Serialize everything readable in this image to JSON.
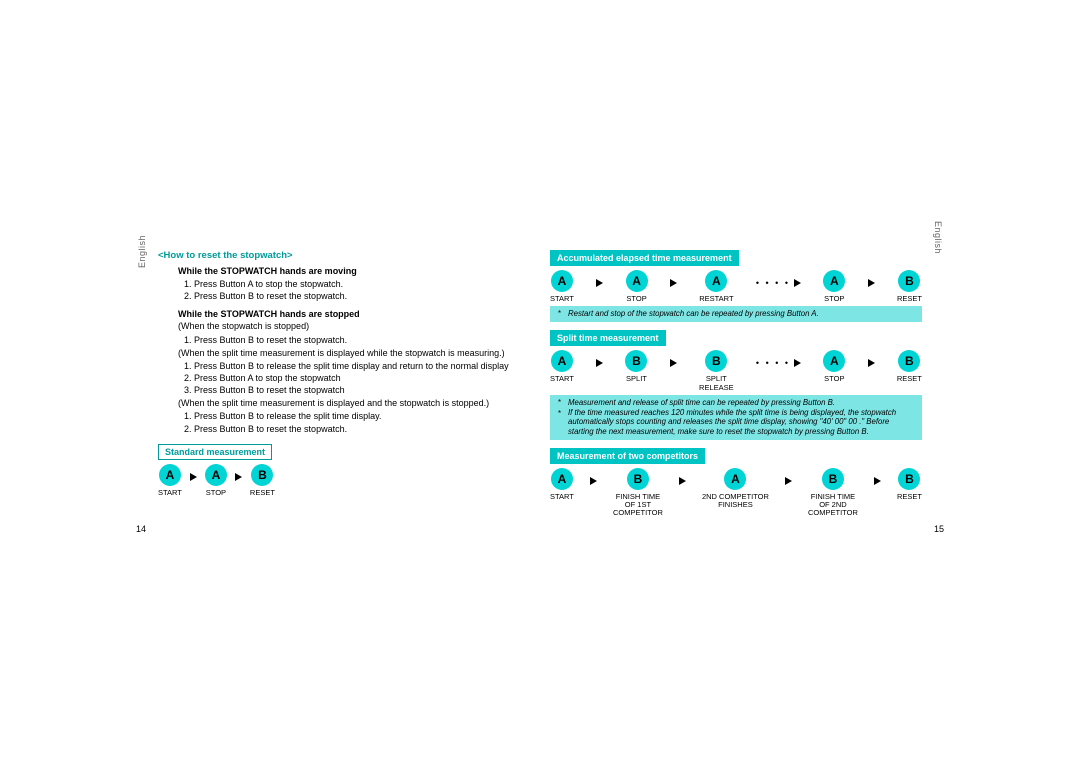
{
  "colors": {
    "teal": "#009b9b",
    "cyan_fill": "#00d4d4",
    "cyan_box": "#7ee5e5",
    "inv_box": "#00c4c4"
  },
  "side_label": "English",
  "page_left_num": "14",
  "page_right_num": "15",
  "left": {
    "reset_title": "<How to reset the stopwatch>",
    "moving_h": "While the STOPWATCH hands are moving",
    "moving_1": "Press Button A to stop the stopwatch.",
    "moving_2": "Press Button B to reset the stopwatch.",
    "stopped_h": "While the STOPWATCH hands are stopped",
    "stopped_p1": "(When the stopwatch is stopped)",
    "stopped_1": "Press Button B to reset the stopwatch.",
    "stopped_p2": "(When the split time measurement is displayed while the stopwatch is measuring.)",
    "stopped_2a": "Press Button B to release the split time display and return to the normal display",
    "stopped_2b": "Press Button A to stop the stopwatch",
    "stopped_2c": "Press Button B to reset the stopwatch",
    "stopped_p3": "(When the split time measurement is displayed and the stopwatch is stopped.)",
    "stopped_3a": "Press Button B to release the split time display.",
    "stopped_3b": "Press Button B to reset the stopwatch.",
    "std_title": "Standard measurement",
    "std_seq": [
      {
        "btn": "A",
        "label": "START"
      },
      {
        "btn": "A",
        "label": "STOP"
      },
      {
        "btn": "B",
        "label": "RESET"
      }
    ]
  },
  "right": {
    "acc_title": "Accumulated elapsed time measurement",
    "acc_seq": [
      {
        "btn": "A",
        "label": "START"
      },
      {
        "btn": "A",
        "label": "STOP"
      },
      {
        "btn": "A",
        "label": "RESTART",
        "dots_after": true
      },
      {
        "btn": "A",
        "label": "STOP"
      },
      {
        "btn": "B",
        "label": "RESET"
      }
    ],
    "acc_note": "Restart and stop of the stopwatch can be repeated by pressing Button A.",
    "split_title": "Split time measurement",
    "split_seq": [
      {
        "btn": "A",
        "label": "START"
      },
      {
        "btn": "B",
        "label": "SPLIT"
      },
      {
        "btn": "B",
        "label": "SPLIT\nRELEASE",
        "dots_after": true
      },
      {
        "btn": "A",
        "label": "STOP"
      },
      {
        "btn": "B",
        "label": "RESET"
      }
    ],
    "split_note1": "Measurement and release of split time can be repeated by pressing Button B.",
    "split_note2": "If the time measured reaches 120 minutes while the split time is being displayed, the stopwatch automatically stops counting and releases the split time display, showing \"40' 00\" 00 .\"  Before starting the next measurement, make sure to reset the stopwatch by pressing Button B.",
    "twocomp_title": "Measurement of two competitors",
    "twocomp_seq": [
      {
        "btn": "A",
        "label": "START"
      },
      {
        "btn": "B",
        "label": "FINISH TIME\nOF 1ST\nCOMPETITOR"
      },
      {
        "btn": "A",
        "label": "2ND COMPETITOR\nFINISHES"
      },
      {
        "btn": "B",
        "label": "FINISH TIME\nOF 2ND\nCOMPETITOR"
      },
      {
        "btn": "B",
        "label": "RESET"
      }
    ]
  }
}
